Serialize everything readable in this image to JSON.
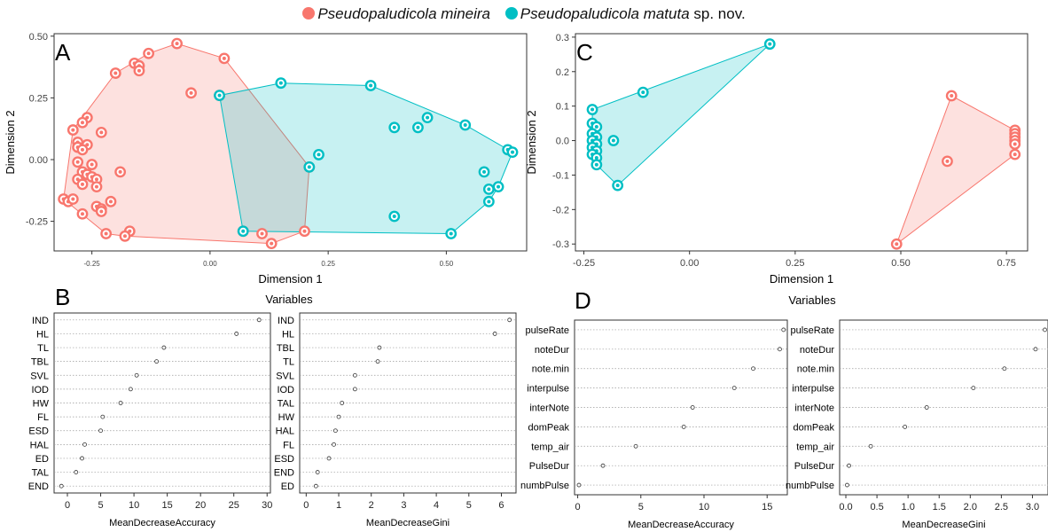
{
  "legend": {
    "series1_name": "Pseudopaludicola mineira",
    "series2_name_italic": "Pseudopaludicola matuta",
    "series2_suffix": " sp. nov.",
    "color1": "#F8766D",
    "color2": "#00BFC4"
  },
  "chart_data": [
    {
      "panel": "A",
      "type": "scatter",
      "xlabel": "Dimension 1",
      "ylabel": "Dimension 2",
      "xlim": [
        -0.33,
        0.67
      ],
      "ylim": [
        -0.37,
        0.51
      ],
      "xticks": [
        -0.25,
        0.0,
        0.25,
        0.5
      ],
      "xticklabels": [
        "-0.25",
        "0.00",
        "0.25",
        "0.50"
      ],
      "yticks": [
        -0.25,
        0.0,
        0.25,
        0.5
      ],
      "yticklabels": [
        "-0.25",
        "0.00",
        "0.25",
        "0.50"
      ],
      "hull": true,
      "series": [
        {
          "name": "Pseudopaludicola mineira",
          "color": "#F8766D",
          "points": [
            [
              -0.07,
              0.47
            ],
            [
              -0.13,
              0.43
            ],
            [
              0.03,
              0.41
            ],
            [
              -0.16,
              0.39
            ],
            [
              -0.15,
              0.38
            ],
            [
              -0.15,
              0.36
            ],
            [
              -0.2,
              0.35
            ],
            [
              -0.04,
              0.27
            ],
            [
              0.02,
              0.26
            ],
            [
              -0.26,
              0.17
            ],
            [
              -0.27,
              0.15
            ],
            [
              -0.29,
              0.12
            ],
            [
              -0.23,
              0.11
            ],
            [
              -0.28,
              0.07
            ],
            [
              -0.26,
              0.06
            ],
            [
              -0.28,
              0.05
            ],
            [
              -0.27,
              0.04
            ],
            [
              -0.28,
              -0.01
            ],
            [
              -0.25,
              -0.02
            ],
            [
              -0.27,
              -0.05
            ],
            [
              -0.19,
              -0.05
            ],
            [
              -0.28,
              -0.08
            ],
            [
              -0.26,
              -0.06
            ],
            [
              -0.25,
              -0.07
            ],
            [
              -0.24,
              -0.08
            ],
            [
              -0.27,
              -0.1
            ],
            [
              -0.24,
              -0.11
            ],
            [
              -0.31,
              -0.16
            ],
            [
              -0.3,
              -0.17
            ],
            [
              -0.29,
              -0.16
            ],
            [
              -0.24,
              -0.19
            ],
            [
              -0.23,
              -0.2
            ],
            [
              -0.23,
              -0.21
            ],
            [
              -0.21,
              -0.17
            ],
            [
              -0.27,
              -0.22
            ],
            [
              -0.22,
              -0.3
            ],
            [
              -0.17,
              -0.29
            ],
            [
              -0.18,
              -0.31
            ],
            [
              0.07,
              -0.29
            ],
            [
              0.11,
              -0.3
            ],
            [
              0.13,
              -0.34
            ],
            [
              0.2,
              -0.29
            ],
            [
              0.21,
              -0.03
            ]
          ]
        },
        {
          "name": "Pseudopaludicola matuta sp. nov.",
          "color": "#00BFC4",
          "points": [
            [
              0.02,
              0.26
            ],
            [
              0.15,
              0.31
            ],
            [
              0.34,
              0.3
            ],
            [
              0.54,
              0.14
            ],
            [
              0.46,
              0.17
            ],
            [
              0.44,
              0.13
            ],
            [
              0.39,
              0.13
            ],
            [
              0.23,
              0.02
            ],
            [
              0.21,
              -0.03
            ],
            [
              0.58,
              -0.05
            ],
            [
              0.63,
              0.04
            ],
            [
              0.64,
              0.03
            ],
            [
              0.61,
              -0.11
            ],
            [
              0.59,
              -0.12
            ],
            [
              0.59,
              -0.17
            ],
            [
              0.39,
              -0.23
            ],
            [
              0.51,
              -0.3
            ],
            [
              0.07,
              -0.29
            ]
          ]
        }
      ]
    },
    {
      "panel": "C",
      "type": "scatter",
      "xlabel": "Dimension 1",
      "ylabel": "Dimension 2",
      "xlim": [
        -0.27,
        0.8
      ],
      "ylim": [
        -0.32,
        0.31
      ],
      "xticks": [
        -0.25,
        0.0,
        0.25,
        0.5,
        0.75
      ],
      "xticklabels": [
        "-0.25",
        "0.00",
        "0.25",
        "0.50",
        "0.75"
      ],
      "yticks": [
        -0.3,
        -0.2,
        -0.1,
        0.0,
        0.1,
        0.2,
        0.3
      ],
      "yticklabels": [
        "-0.3",
        "-0.2",
        "-0.1",
        "0.0",
        "0.1",
        "0.2",
        "0.3"
      ],
      "hull": true,
      "series": [
        {
          "name": "Pseudopaludicola mineira",
          "color": "#F8766D",
          "points": [
            [
              0.62,
              0.13
            ],
            [
              0.77,
              0.03
            ],
            [
              0.77,
              0.02
            ],
            [
              0.77,
              0.01
            ],
            [
              0.77,
              0.0
            ],
            [
              0.77,
              -0.01
            ],
            [
              0.77,
              -0.04
            ],
            [
              0.61,
              -0.06
            ],
            [
              0.49,
              -0.3
            ]
          ]
        },
        {
          "name": "Pseudopaludicola matuta sp. nov.",
          "color": "#00BFC4",
          "points": [
            [
              0.19,
              0.28
            ],
            [
              -0.11,
              0.14
            ],
            [
              -0.23,
              0.09
            ],
            [
              -0.23,
              0.05
            ],
            [
              -0.22,
              0.04
            ],
            [
              -0.23,
              0.02
            ],
            [
              -0.22,
              0.01
            ],
            [
              -0.23,
              0.0
            ],
            [
              -0.22,
              -0.01
            ],
            [
              -0.23,
              -0.02
            ],
            [
              -0.22,
              -0.03
            ],
            [
              -0.23,
              -0.04
            ],
            [
              -0.22,
              -0.05
            ],
            [
              -0.22,
              -0.07
            ],
            [
              -0.18,
              0.0
            ],
            [
              -0.17,
              -0.13
            ]
          ]
        }
      ]
    },
    {
      "panel": "B",
      "type": "dotplot",
      "group_title": "Variables",
      "xlabel": "MeanDecreaseAccuracy",
      "xlim": [
        -2,
        30.5
      ],
      "xticks": [
        0,
        5,
        10,
        15,
        20,
        25,
        30
      ],
      "categories": [
        "IND",
        "HL",
        "TL",
        "TBL",
        "SVL",
        "IOD",
        "HW",
        "FL",
        "ESD",
        "HAL",
        "ED",
        "TAL",
        "END"
      ],
      "values": [
        28.8,
        25.4,
        14.5,
        13.4,
        10.4,
        9.5,
        8.0,
        5.3,
        5.0,
        2.6,
        2.2,
        1.3,
        -0.9
      ]
    },
    {
      "panel": "B",
      "type": "dotplot",
      "xlabel": "MeanDecreaseGini",
      "xlim": [
        -0.2,
        6.45
      ],
      "xticks": [
        0,
        1,
        2,
        3,
        4,
        5,
        6
      ],
      "categories": [
        "IND",
        "HL",
        "TBL",
        "TL",
        "SVL",
        "IOD",
        "TAL",
        "HW",
        "HAL",
        "FL",
        "ESD",
        "END",
        "ED"
      ],
      "values": [
        6.25,
        5.8,
        2.25,
        2.2,
        1.5,
        1.5,
        1.1,
        1.0,
        0.9,
        0.85,
        0.7,
        0.35,
        0.3
      ]
    },
    {
      "panel": "D",
      "type": "dotplot",
      "group_title": "Variables",
      "xlabel": "MeanDecreaseAccuracy",
      "xlim": [
        -0.25,
        16.6
      ],
      "xticks": [
        0,
        5,
        10,
        15
      ],
      "categories": [
        "pulseRate",
        "noteDur",
        "note.min",
        "interpulse",
        "interNote",
        "domPeak",
        "temp_air",
        "PulseDur",
        "numbPulse"
      ],
      "values": [
        16.3,
        16.0,
        13.9,
        12.4,
        9.1,
        8.4,
        4.6,
        2.0,
        0.1
      ]
    },
    {
      "panel": "D",
      "type": "dotplot",
      "xlabel": "MeanDecreaseGini",
      "xlim": [
        -0.1,
        3.25
      ],
      "xticks": [
        0.0,
        0.5,
        1.0,
        1.5,
        2.0,
        2.5,
        3.0
      ],
      "xticklabels": [
        "0.0",
        "0.5",
        "1.0",
        "1.5",
        "2.0",
        "2.5",
        "3.0"
      ],
      "categories": [
        "pulseRate",
        "noteDur",
        "note.min",
        "interpulse",
        "interNote",
        "domPeak",
        "temp_air",
        "PulseDur",
        "numbPulse"
      ],
      "values": [
        3.2,
        3.05,
        2.55,
        2.05,
        1.3,
        0.95,
        0.4,
        0.05,
        0.02
      ]
    }
  ]
}
